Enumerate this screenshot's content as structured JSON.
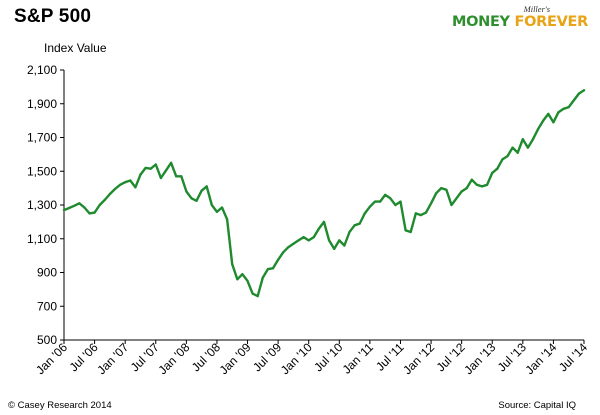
{
  "title": "S&P 500",
  "brand": {
    "tagline": "Miller's",
    "money": "MONEY",
    "forever": "FOREVER"
  },
  "footer": {
    "copyright": "© Casey Research 2014",
    "source": "Source: Capital IQ"
  },
  "chart_data": {
    "type": "line",
    "title": "S&P 500",
    "ylabel": "Index Value",
    "xlabel": "",
    "ylim": [
      500,
      2100
    ],
    "yticks": [
      500,
      700,
      900,
      1100,
      1300,
      1500,
      1700,
      1900,
      2100
    ],
    "ytick_labels": [
      "500",
      "700",
      "900",
      "1,100",
      "1,300",
      "1,500",
      "1,700",
      "1,900",
      "2,100"
    ],
    "xlim": [
      "2006-01",
      "2014-07"
    ],
    "xticks": [
      "2006-01",
      "2006-07",
      "2007-01",
      "2007-07",
      "2008-01",
      "2008-07",
      "2009-01",
      "2009-07",
      "2010-01",
      "2010-07",
      "2011-01",
      "2011-07",
      "2012-01",
      "2012-07",
      "2013-01",
      "2013-07",
      "2014-01",
      "2014-07"
    ],
    "xtick_labels": [
      "Jan '06",
      "Jul '06",
      "Jan '07",
      "Jul '07",
      "Jan '08",
      "Jul '08",
      "Jan '09",
      "Jul '09",
      "Jan '10",
      "Jul '10",
      "Jan '11",
      "Jul '11",
      "Jan '12",
      "Jul '12",
      "Jan '13",
      "Jul '13",
      "Jan '14",
      "Jul '14"
    ],
    "grid": false,
    "line_color": "#1f8a2e",
    "series": [
      {
        "x": [
          "2006-01",
          "2006-02",
          "2006-03",
          "2006-04",
          "2006-05",
          "2006-06",
          "2006-07",
          "2006-08",
          "2006-09",
          "2006-10",
          "2006-11",
          "2006-12",
          "2007-01",
          "2007-02",
          "2007-03",
          "2007-04",
          "2007-05",
          "2007-06",
          "2007-07",
          "2007-08",
          "2007-09",
          "2007-10",
          "2007-11",
          "2007-12",
          "2008-01",
          "2008-02",
          "2008-03",
          "2008-04",
          "2008-05",
          "2008-06",
          "2008-07",
          "2008-08",
          "2008-09",
          "2008-10",
          "2008-11",
          "2008-12",
          "2009-01",
          "2009-02",
          "2009-03",
          "2009-04",
          "2009-05",
          "2009-06",
          "2009-07",
          "2009-08",
          "2009-09",
          "2009-10",
          "2009-11",
          "2009-12",
          "2010-01",
          "2010-02",
          "2010-03",
          "2010-04",
          "2010-05",
          "2010-06",
          "2010-07",
          "2010-08",
          "2010-09",
          "2010-10",
          "2010-11",
          "2010-12",
          "2011-01",
          "2011-02",
          "2011-03",
          "2011-04",
          "2011-05",
          "2011-06",
          "2011-07",
          "2011-08",
          "2011-09",
          "2011-10",
          "2011-11",
          "2011-12",
          "2012-01",
          "2012-02",
          "2012-03",
          "2012-04",
          "2012-05",
          "2012-06",
          "2012-07",
          "2012-08",
          "2012-09",
          "2012-10",
          "2012-11",
          "2012-12",
          "2013-01",
          "2013-02",
          "2013-03",
          "2013-04",
          "2013-05",
          "2013-06",
          "2013-07",
          "2013-08",
          "2013-09",
          "2013-10",
          "2013-11",
          "2013-12",
          "2014-01",
          "2014-02",
          "2014-03",
          "2014-04",
          "2014-05",
          "2014-06",
          "2014-07"
        ],
        "values": [
          1270,
          1282,
          1295,
          1310,
          1285,
          1250,
          1255,
          1300,
          1330,
          1365,
          1395,
          1420,
          1435,
          1445,
          1405,
          1480,
          1520,
          1515,
          1540,
          1460,
          1505,
          1550,
          1470,
          1470,
          1380,
          1340,
          1325,
          1385,
          1410,
          1300,
          1260,
          1285,
          1215,
          950,
          860,
          890,
          850,
          775,
          760,
          870,
          920,
          925,
          975,
          1020,
          1050,
          1070,
          1090,
          1110,
          1090,
          1110,
          1160,
          1200,
          1090,
          1040,
          1090,
          1060,
          1140,
          1180,
          1190,
          1250,
          1290,
          1320,
          1320,
          1360,
          1340,
          1300,
          1320,
          1150,
          1140,
          1250,
          1240,
          1255,
          1310,
          1370,
          1400,
          1390,
          1300,
          1340,
          1380,
          1400,
          1450,
          1420,
          1410,
          1420,
          1490,
          1515,
          1570,
          1590,
          1640,
          1610,
          1690,
          1640,
          1690,
          1750,
          1800,
          1840,
          1790,
          1850,
          1870,
          1880,
          1920,
          1960,
          1980
        ]
      }
    ]
  }
}
